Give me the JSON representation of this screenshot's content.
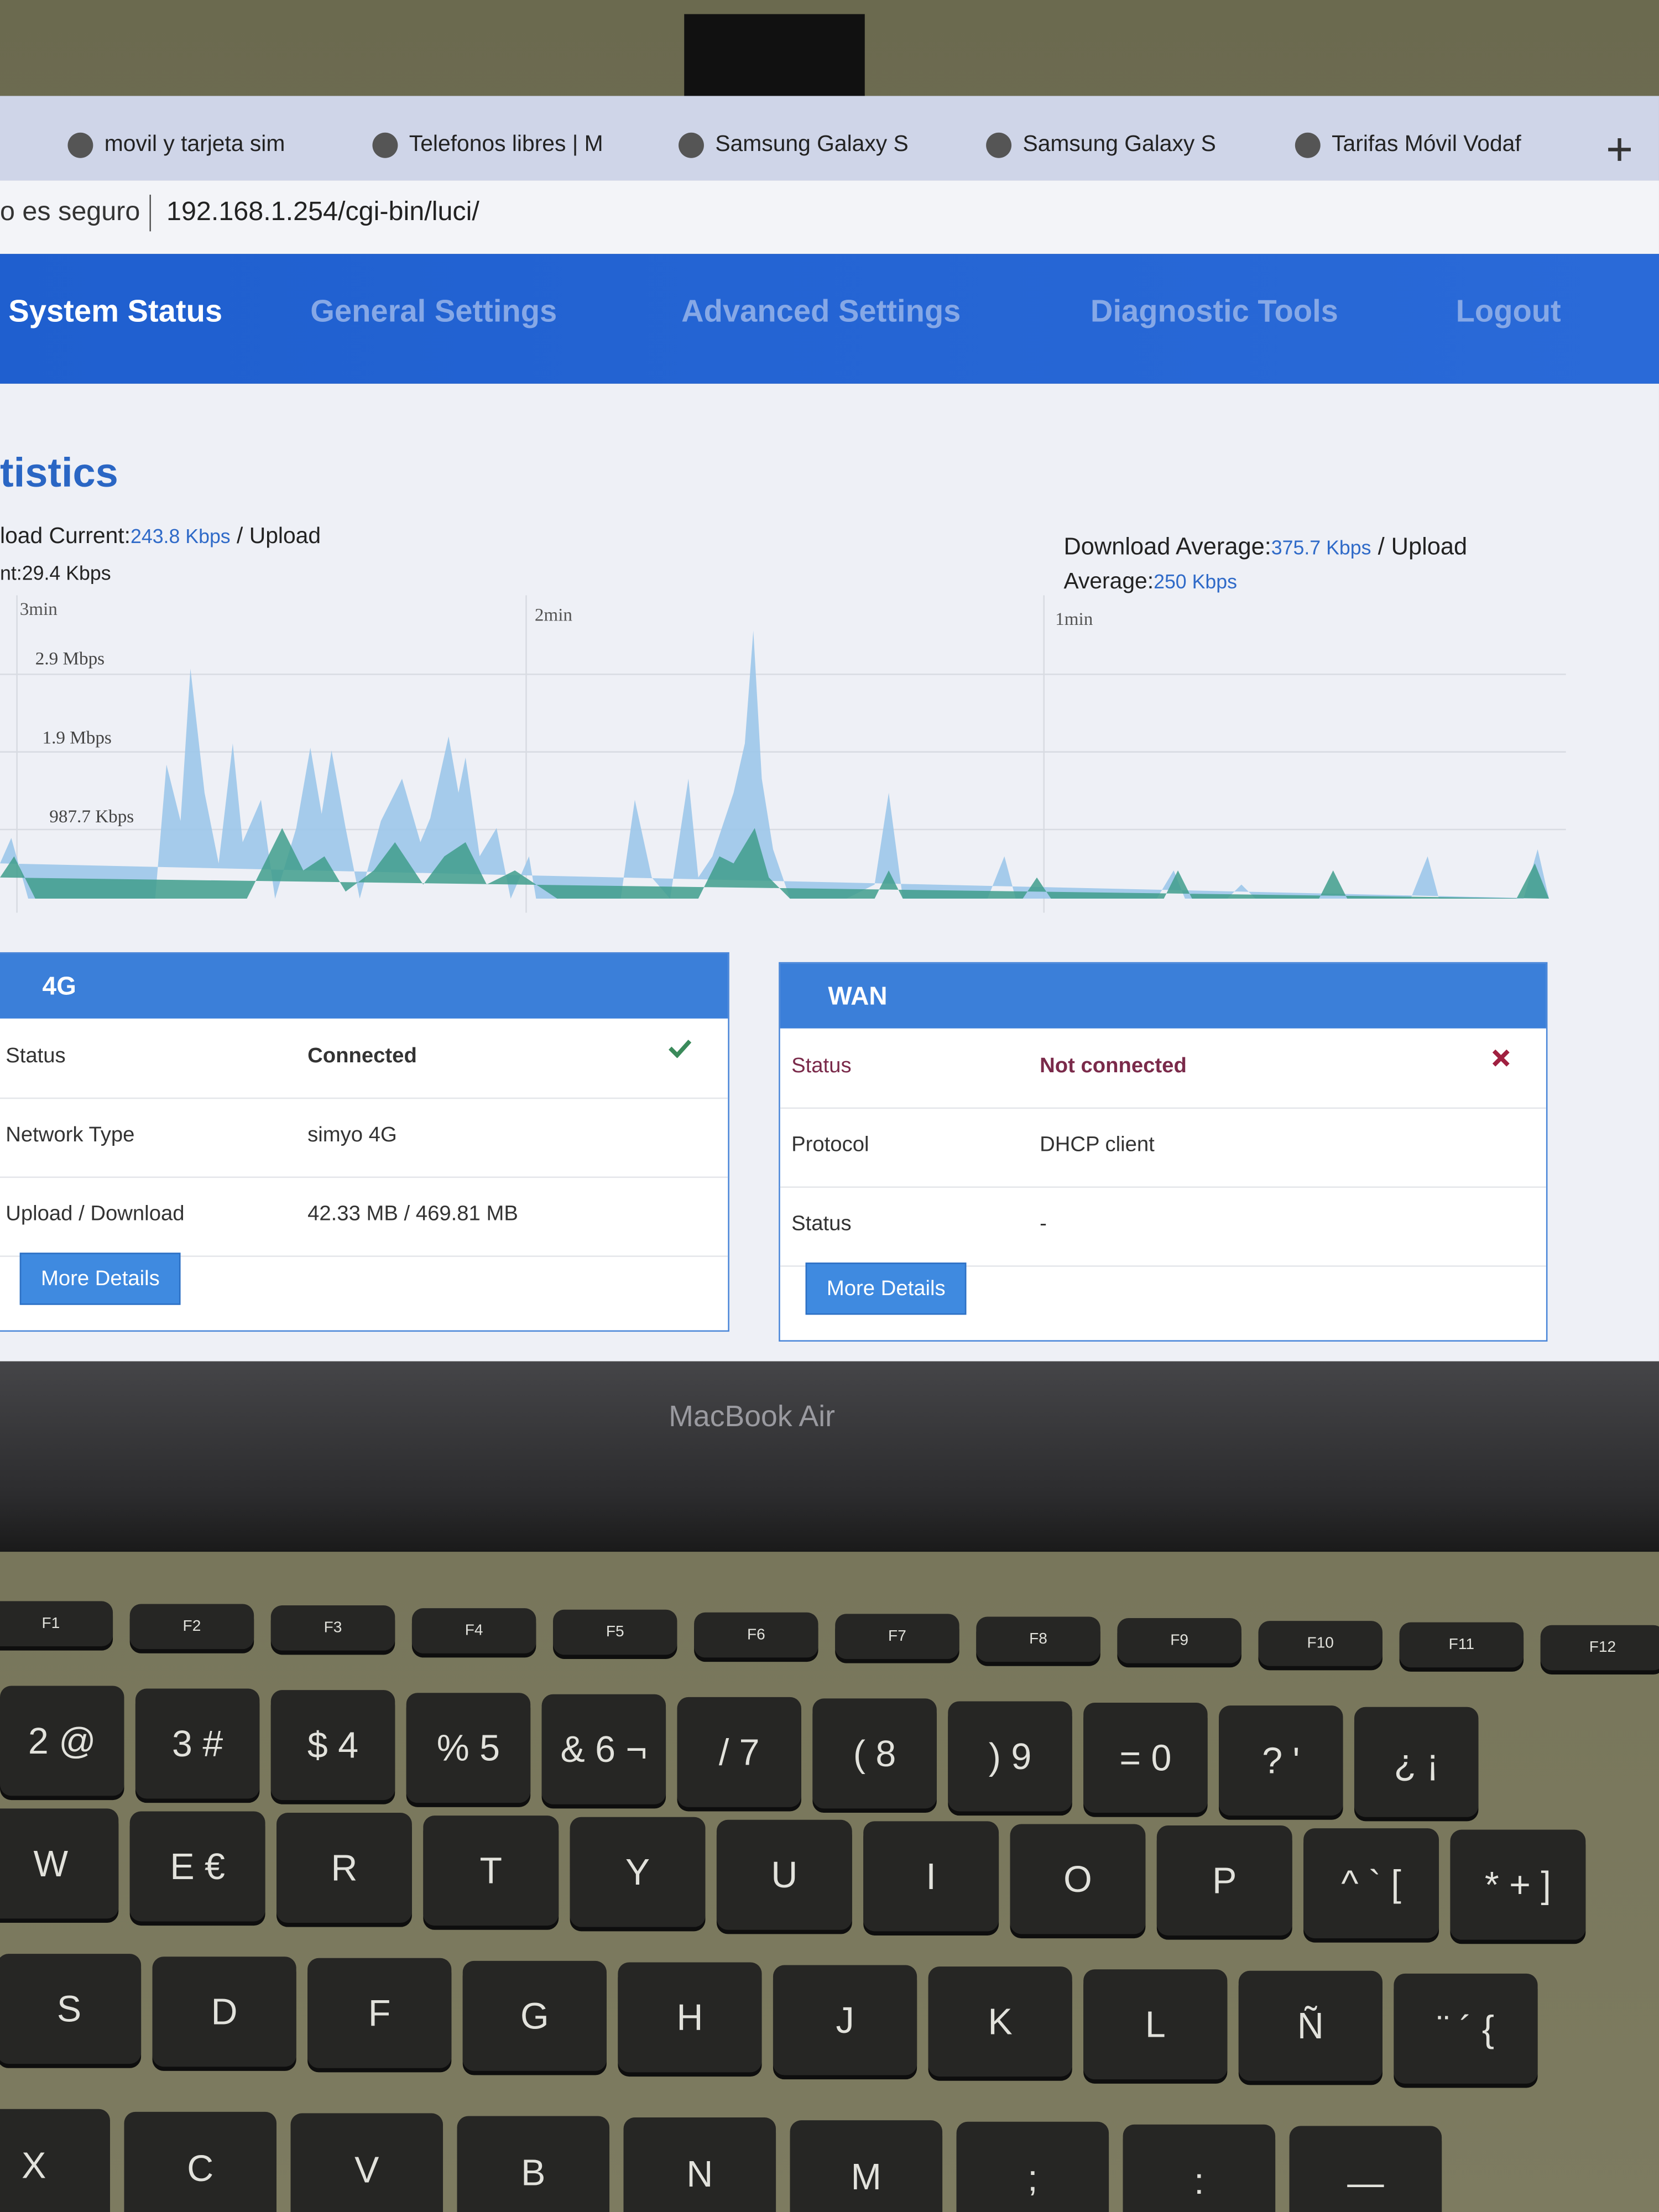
{
  "browser": {
    "tabs": [
      "movil y tarjeta sim",
      "Telefonos libres | M",
      "Samsung Galaxy S",
      "Samsung Galaxy S",
      "Tarifas Móvil Vodaf"
    ],
    "address_prefix": "o es seguro",
    "url": "192.168.1.254/cgi-bin/luci/"
  },
  "nav": [
    "System Status",
    "General Settings",
    "Advanced Settings",
    "Diagnostic Tools",
    "Logout"
  ],
  "statistics": {
    "title": "tistics",
    "current": {
      "label": "load Current:",
      "download": "243.8 Kbps",
      "upload_label": "/ Upload",
      "upload_label_2": "nt:",
      "upload": "29.4 Kbps"
    },
    "average": {
      "label": "Download Average:",
      "download": "375.7 Kbps",
      "upload_label": "/ Upload",
      "upload_label_2": "Average:",
      "upload": "250 Kbps"
    },
    "time_labels": [
      "3min",
      "2min",
      "1min"
    ],
    "y_labels": [
      "2.9 Mbps",
      "1.9 Mbps",
      "987.7 Kbps"
    ]
  },
  "panel_4g": {
    "title": "4G",
    "rows": [
      [
        "Status",
        "Connected"
      ],
      [
        "Network Type",
        "simyo 4G"
      ],
      [
        "Upload / Download",
        "42.33 MB / 469.81 MB"
      ]
    ],
    "button": "More Details"
  },
  "panel_wan": {
    "title": "WAN",
    "rows": [
      [
        "Status",
        "Not connected"
      ],
      [
        "Protocol",
        "DHCP client"
      ],
      [
        "Status",
        "-"
      ]
    ],
    "button": "More Details"
  },
  "laptop": {
    "model": "MacBook Air"
  },
  "keyboard": {
    "rows": [
      [
        "F1",
        "F2",
        "F3",
        "F4",
        "F5",
        "F6",
        "F7",
        "F8",
        "F9",
        "F10",
        "F11",
        "F12"
      ],
      [
        "2 @",
        "3 #",
        "$ 4",
        "% 5",
        "& 6 ¬",
        "/ 7",
        "( 8",
        ") 9",
        "= 0",
        "? '",
        "¿ ¡"
      ],
      [
        "W",
        "E €",
        "R",
        "T",
        "Y",
        "U",
        "I",
        "O",
        "P",
        "^ ` [",
        "* + ]"
      ],
      [
        "S",
        "D",
        "F",
        "G",
        "H",
        "J",
        "K",
        "L",
        "Ñ",
        "¨ ´ {"
      ],
      [
        "X",
        "C",
        "V",
        "B",
        "N",
        "M",
        ";",
        ":",
        "—"
      ]
    ]
  }
}
